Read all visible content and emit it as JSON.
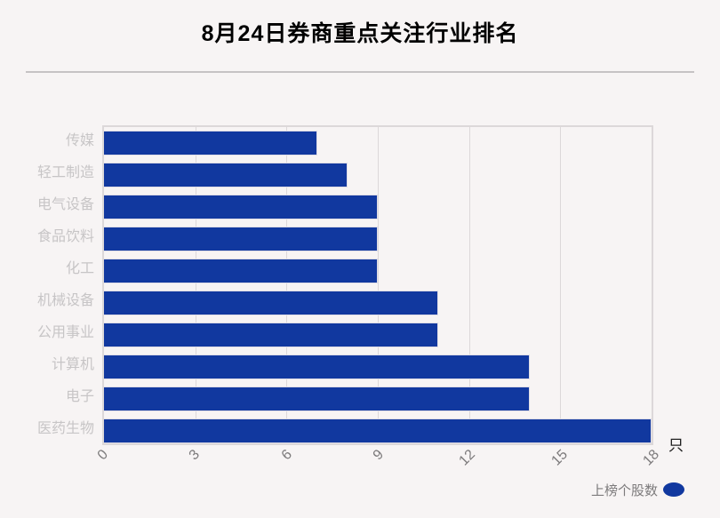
{
  "title": "8月24日券商重点关注行业排名",
  "unit_label": "只",
  "legend": {
    "label": "上榜个股数"
  },
  "colors": {
    "bar": "#11389f",
    "background": "#f7f4f4",
    "grid": "#dcd8d9",
    "category_label": "#c7c5c6",
    "tick_label": "#7d7b7c"
  },
  "chart_data": {
    "type": "bar",
    "orientation": "horizontal",
    "title": "8月24日券商重点关注行业排名",
    "categories": [
      "传媒",
      "轻工制造",
      "电气设备",
      "食品饮料",
      "化工",
      "机械设备",
      "公用事业",
      "计算机",
      "电子",
      "医药生物"
    ],
    "series": [
      {
        "name": "上榜个股数",
        "values": [
          7,
          8,
          9,
          9,
          9,
          11,
          11,
          14,
          14,
          18
        ]
      }
    ],
    "xlabel": "只",
    "ylabel": "",
    "xlim": [
      0,
      18
    ],
    "xticks": [
      0,
      3,
      6,
      9,
      12,
      15,
      18
    ],
    "grid": true,
    "legend_position": "bottom-right"
  }
}
